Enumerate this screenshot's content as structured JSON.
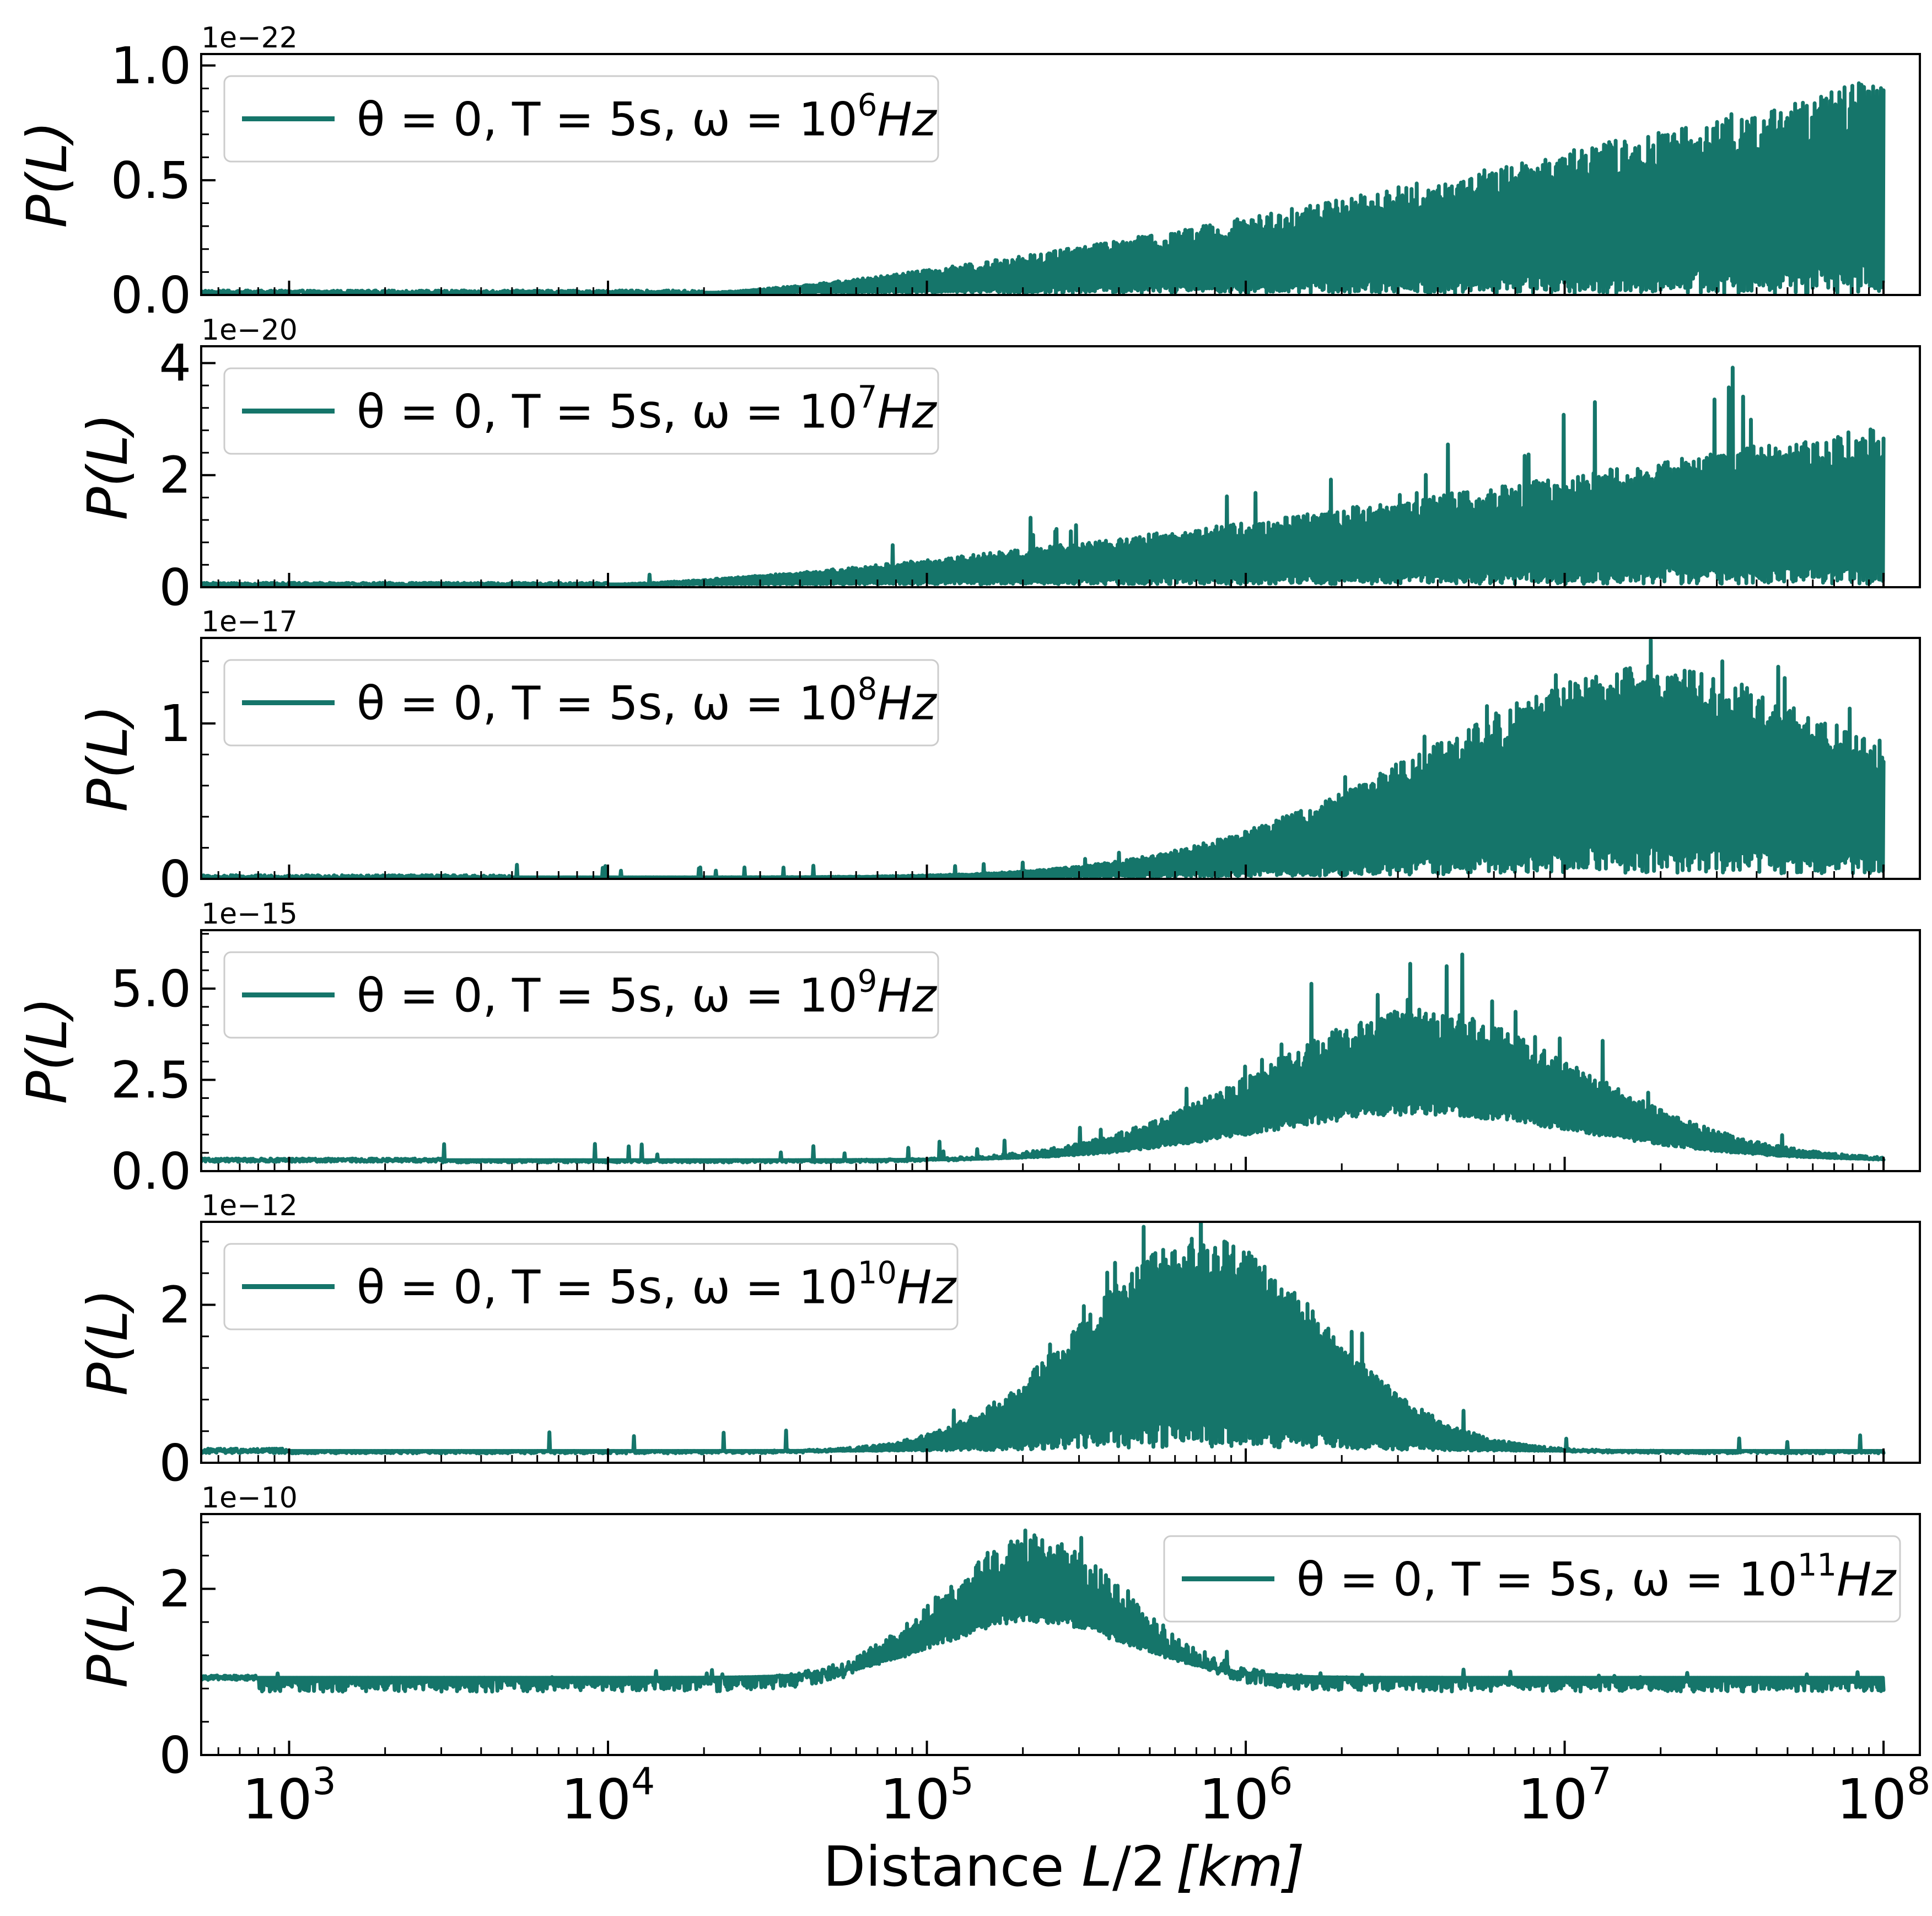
{
  "chart_data": {
    "type": "line",
    "xscale": "log",
    "xlim": [
      530,
      130000000
    ],
    "xticks": [
      1000,
      10000,
      100000,
      1000000,
      10000000,
      100000000
    ],
    "xtick_labels": [
      {
        "base": "10",
        "exp": "3"
      },
      {
        "base": "10",
        "exp": "4"
      },
      {
        "base": "10",
        "exp": "5"
      },
      {
        "base": "10",
        "exp": "6"
      },
      {
        "base": "10",
        "exp": "7"
      },
      {
        "base": "10",
        "exp": "8"
      }
    ],
    "xlabel": {
      "prefix": "Distance ",
      "var": "L",
      "mid": "/2",
      "unit": "[km]"
    },
    "color": "#15756a",
    "panels": [
      {
        "ylabel": "P(L)",
        "offset_text": "1e−22",
        "ylim": [
          0,
          1.05
        ],
        "yticks": [
          0,
          0.5,
          1.0
        ],
        "ytick_labels": [
          "0.0",
          "0.5",
          "1.0"
        ],
        "legend": {
          "location": "upper-left",
          "text": "θ = 0, T = 5s, ω = 10",
          "exp": "6",
          "unit": "Hz"
        },
        "series": [
          {
            "name": "θ = 0, T = 5s, ω = 10^6 Hz",
            "kind": "band",
            "x_start": 500,
            "x_end": 100000000,
            "onset": 20000,
            "mode": "rise",
            "upper_max": 0.95,
            "lower_level": 0.0,
            "flat_level": 0.01,
            "noise": 0.5,
            "spike_boost": 0.0
          }
        ]
      },
      {
        "ylabel": "P(L)",
        "offset_text": "1e−20",
        "ylim": [
          0,
          4.3
        ],
        "yticks": [
          0,
          2,
          4
        ],
        "ytick_labels": [
          "0",
          "2",
          "4"
        ],
        "legend": {
          "location": "upper-left",
          "text": "θ = 0, T = 5s, ω = 10",
          "exp": "7",
          "unit": "Hz"
        },
        "series": [
          {
            "name": "θ = 0, T = 5s, ω = 10^7 Hz",
            "kind": "band",
            "x_start": 500,
            "x_end": 100000000,
            "onset": 10000,
            "mode": "rise",
            "upper_max": 2.9,
            "lower_level": 0.1,
            "flat_level": 0.05,
            "noise": 0.45,
            "spike_boost": 1.3
          }
        ]
      },
      {
        "ylabel": "P(L)",
        "offset_text": "1e−17",
        "ylim": [
          0,
          1.55
        ],
        "yticks": [
          0,
          1
        ],
        "ytick_labels": [
          "0",
          "1"
        ],
        "legend": {
          "location": "upper-left",
          "text": "θ = 0, T = 5s, ω = 10",
          "exp": "8",
          "unit": "Hz"
        },
        "series": [
          {
            "name": "θ = 0, T = 5s, ω = 10^8 Hz",
            "kind": "band",
            "x_start": 500,
            "x_end": 100000000,
            "onset": 5000,
            "mode": "peak",
            "peak_x": 17000000,
            "peak_width": 1.1,
            "upper_max": 1.37,
            "lower_level": 0.04,
            "flat_level": 0.01,
            "noise": 0.4,
            "spike_boost": 0.3
          }
        ]
      },
      {
        "ylabel": "P(L)",
        "offset_text": "1e−15",
        "ylim": [
          0,
          6.6
        ],
        "yticks": [
          0,
          2.5,
          5.0
        ],
        "ytick_labels": [
          "0.0",
          "2.5",
          "5.0"
        ],
        "legend": {
          "location": "upper-left",
          "text": "θ = 0, T = 5s, ω = 10",
          "exp": "9",
          "unit": "Hz"
        },
        "series": [
          {
            "name": "θ = 0, T = 5s, ω = 10^9 Hz",
            "kind": "band",
            "x_start": 500,
            "x_end": 100000000,
            "onset": 3000,
            "mode": "peak",
            "peak_x": 3300000,
            "peak_width": 0.75,
            "upper_max": 4.45,
            "lower_level": 1.55,
            "flat_level": 0.3,
            "noise": 0.35,
            "spike_boost": 1.6
          }
        ]
      },
      {
        "ylabel": "P(L)",
        "offset_text": "1e−12",
        "ylim": [
          0,
          3.05
        ],
        "yticks": [
          0,
          2
        ],
        "ytick_labels": [
          "0",
          "2"
        ],
        "legend": {
          "location": "upper-left",
          "text": "θ = 0, T = 5s, ω = 10",
          "exp": "10",
          "unit": "Hz"
        },
        "series": [
          {
            "name": "θ = 0, T = 5s, ω = 10^10 Hz",
            "kind": "band",
            "x_start": 500,
            "x_end": 100000000,
            "onset": 1000,
            "mode": "peak",
            "peak_x": 700000,
            "peak_width": 0.55,
            "upper_max": 2.9,
            "lower_level": 0.2,
            "flat_level": 0.15,
            "noise": 0.35,
            "spike_boost": 0.9
          }
        ]
      },
      {
        "ylabel": "P(L)",
        "offset_text": "1e−10",
        "ylim": [
          0,
          2.9
        ],
        "yticks": [
          0,
          2
        ],
        "ytick_labels": [
          "0",
          "2"
        ],
        "legend": {
          "location": "upper-right",
          "text": "θ = 0, T = 5s, ω = 10",
          "exp": "11",
          "unit": "Hz"
        },
        "series": [
          {
            "name": "θ = 0, T = 5s, ω = 10^11 Hz",
            "kind": "band",
            "x_start": 500,
            "x_end": 100000000,
            "onset": 800,
            "mode": "peak",
            "peak_x": 210000,
            "peak_width": 0.42,
            "upper_max": 2.65,
            "lower_level": 1.6,
            "flat_level": 0.93,
            "noise": 0.3,
            "spike_boost": 0.4
          }
        ]
      }
    ]
  }
}
